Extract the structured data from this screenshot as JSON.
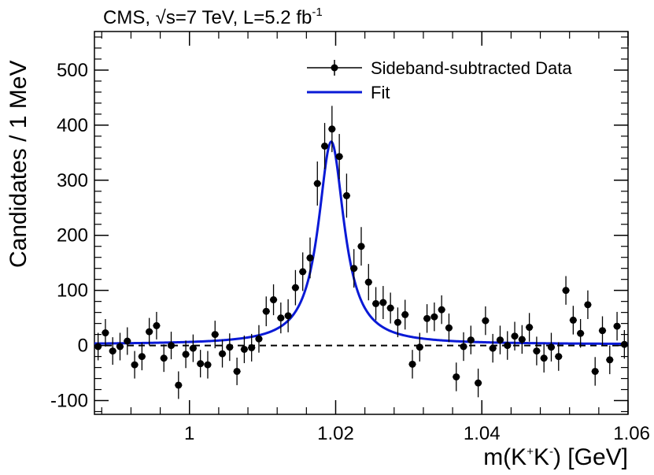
{
  "chart_data": {
    "type": "scatter",
    "title": {
      "prefix": "CMS, ",
      "sqrt_symbol": "√",
      "energy": "s=7 TeV, L=5.2 fb",
      "lumi_exp": "-1"
    },
    "xlabel": {
      "base": "m(K",
      "sup1": "+",
      "mid": "K",
      "sup2": "-",
      "end": ") [GeV]"
    },
    "ylabel": "Candidates / 1 MeV",
    "xlim": [
      0.987,
      1.06
    ],
    "ylim": [
      -125,
      570
    ],
    "xticks": [
      1,
      1.02,
      1.04,
      1.06
    ],
    "xtick_labels": [
      "1",
      "1.02",
      "1.04",
      "1.06"
    ],
    "yticks": [
      -100,
      0,
      100,
      200,
      300,
      400,
      500
    ],
    "ytick_labels": [
      "-100",
      "0",
      "100",
      "200",
      "300",
      "400",
      "500"
    ],
    "legend": {
      "position": "top-right",
      "entries": [
        "Sideband-subtracted Data",
        "Fit"
      ]
    },
    "colors": {
      "fit": "#0a1ad6",
      "data": "#000000",
      "baseline": "#000000"
    },
    "zero_line": {
      "y": 0,
      "style": "dashed"
    },
    "series": [
      {
        "name": "Sideband-subtracted Data",
        "x": [
          0.9875,
          0.9885,
          0.9895,
          0.9905,
          0.9915,
          0.9925,
          0.9935,
          0.9945,
          0.9955,
          0.9965,
          0.9975,
          0.9985,
          0.9995,
          1.0005,
          1.0015,
          1.0025,
          1.0035,
          1.0045,
          1.0055,
          1.0065,
          1.0075,
          1.0085,
          1.0095,
          1.0105,
          1.0115,
          1.0125,
          1.0135,
          1.0145,
          1.0155,
          1.0165,
          1.0175,
          1.0185,
          1.0195,
          1.0205,
          1.0215,
          1.0225,
          1.0235,
          1.0245,
          1.0255,
          1.0265,
          1.0275,
          1.0285,
          1.0295,
          1.0305,
          1.0315,
          1.0325,
          1.0335,
          1.0345,
          1.0355,
          1.0365,
          1.0375,
          1.0385,
          1.0395,
          1.0405,
          1.0415,
          1.0425,
          1.0435,
          1.0445,
          1.0455,
          1.0465,
          1.0475,
          1.0485,
          1.0495,
          1.0505,
          1.0515,
          1.0525,
          1.0535,
          1.0545,
          1.0555,
          1.0565,
          1.0575,
          1.0585,
          1.0595
        ],
        "y": [
          -2,
          23,
          -10,
          -2,
          8,
          -35,
          -20,
          25,
          36,
          -23,
          0,
          -72,
          -16,
          -5,
          -33,
          -35,
          20,
          -15,
          -3,
          -47,
          -7,
          -4,
          12,
          62,
          83,
          50,
          54,
          105,
          134,
          159,
          294,
          362,
          393,
          343,
          272,
          140,
          180,
          115,
          76,
          78,
          68,
          42,
          56,
          -34,
          -3,
          49,
          52,
          65,
          32,
          -57,
          -2,
          10,
          -68,
          45,
          -5,
          10,
          0,
          17,
          11,
          33,
          -10,
          -23,
          -3,
          -20,
          100,
          46,
          22,
          74,
          -47,
          27,
          -26,
          35,
          2
        ],
        "err": [
          25,
          25,
          25,
          25,
          25,
          25,
          25,
          25,
          25,
          25,
          25,
          25,
          25,
          25,
          25,
          25,
          25,
          25,
          25,
          25,
          25,
          25,
          25,
          27,
          28,
          28,
          30,
          32,
          35,
          37,
          40,
          42,
          42,
          41,
          40,
          35,
          35,
          33,
          30,
          30,
          28,
          27,
          27,
          26,
          26,
          26,
          26,
          26,
          26,
          26,
          26,
          26,
          26,
          26,
          26,
          26,
          26,
          26,
          26,
          26,
          26,
          26,
          26,
          26,
          26,
          26,
          26,
          26,
          26,
          26,
          26,
          26,
          26
        ]
      },
      {
        "name": "Fit",
        "type": "line",
        "model": {
          "amplitude": 368,
          "mean": 1.0194,
          "gamma": 0.0043,
          "sigma": 0.0012,
          "background": 2
        }
      }
    ]
  }
}
